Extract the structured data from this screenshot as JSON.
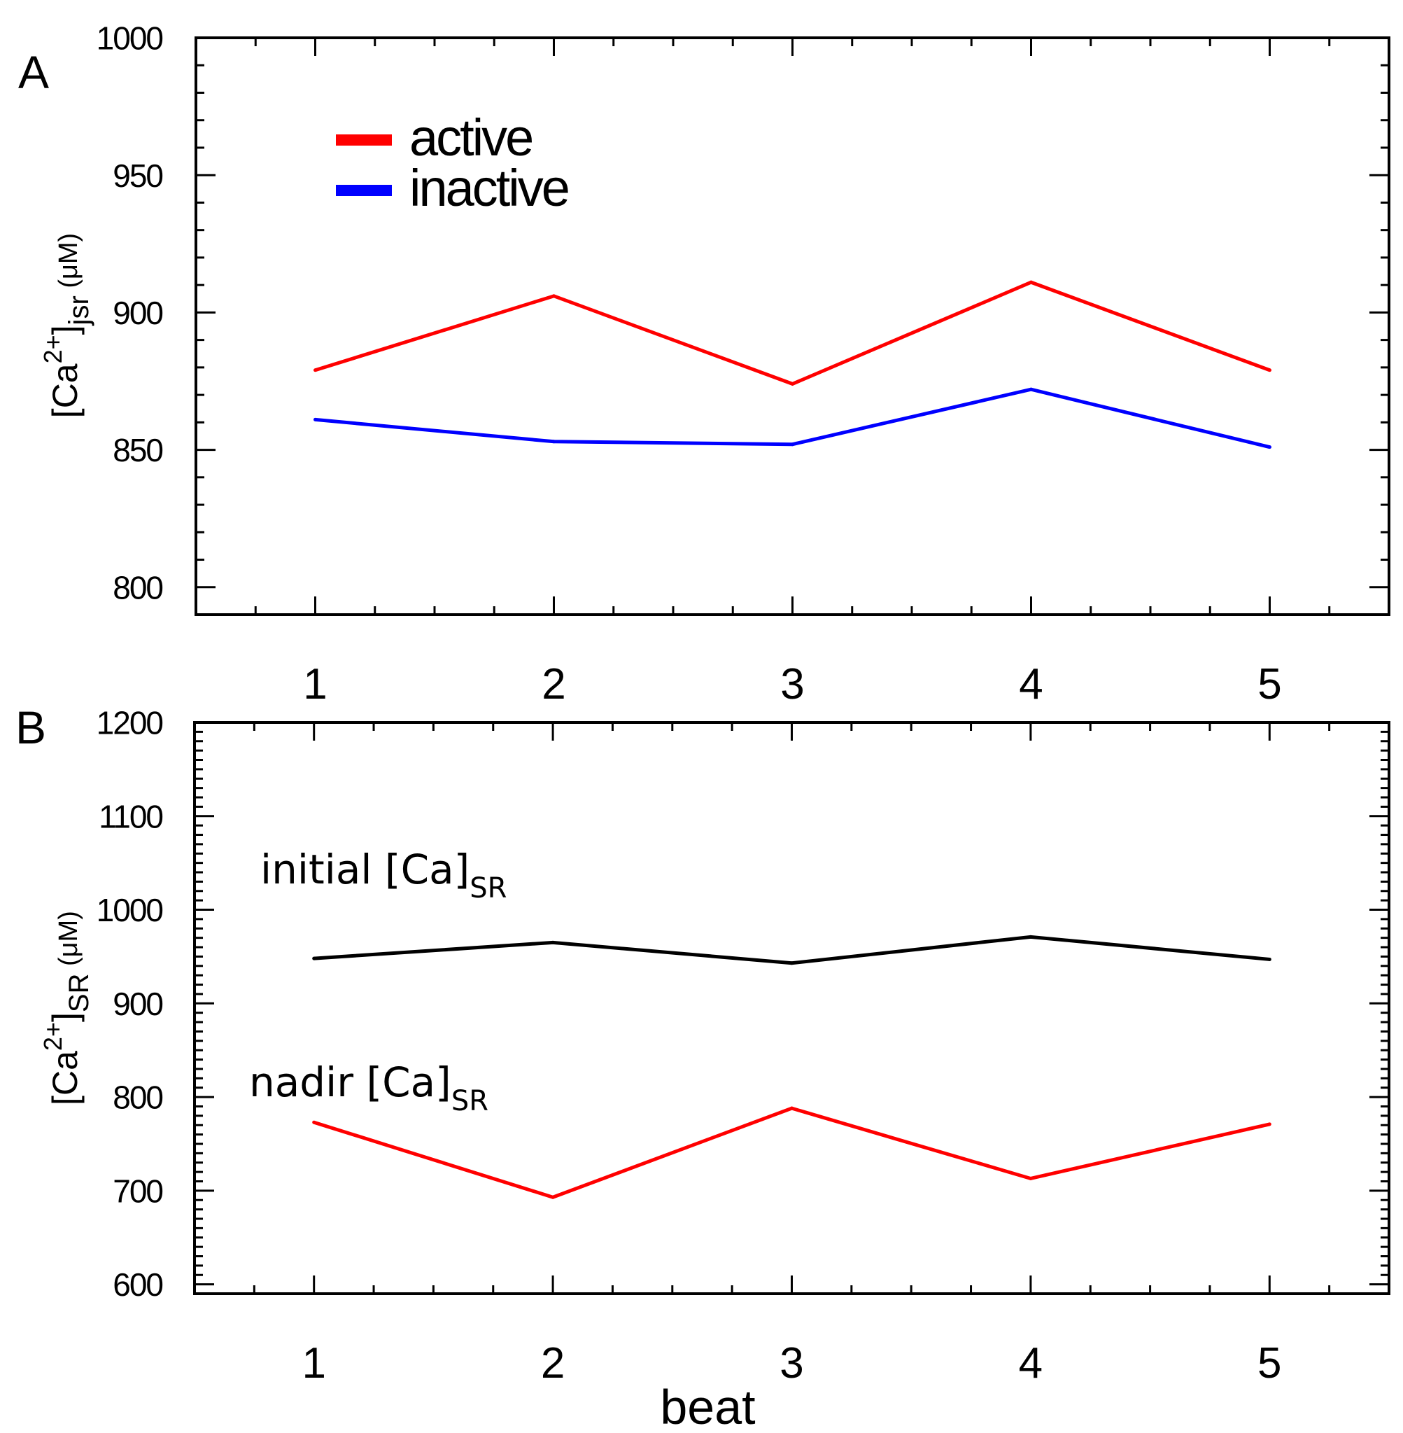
{
  "chart_data": [
    {
      "panel": "A",
      "type": "line",
      "x": [
        1,
        2,
        3,
        4,
        5
      ],
      "xticks": [
        "1",
        "2",
        "3",
        "4",
        "5"
      ],
      "xlim": [
        0.5,
        5.5
      ],
      "ylim": [
        790,
        1000
      ],
      "yticks": [
        800,
        850,
        900,
        950,
        1000
      ],
      "ylabel": {
        "base": "[Ca",
        "sup": "2+",
        "close": "]",
        "sub": "jsr",
        "unit": " (μM)"
      },
      "xlabel": "",
      "series": [
        {
          "name": "active",
          "color": "#ff0000",
          "values": [
            879,
            906,
            874,
            911,
            879
          ]
        },
        {
          "name": "inactive",
          "color": "#0000ff",
          "values": [
            861,
            853,
            852,
            872,
            851
          ]
        }
      ],
      "legend": {
        "position": "top-left",
        "entries": [
          "active",
          "inactive"
        ]
      }
    },
    {
      "panel": "B",
      "type": "line",
      "x": [
        1,
        2,
        3,
        4,
        5
      ],
      "xticks": [
        "1",
        "2",
        "3",
        "4",
        "5"
      ],
      "xlim": [
        0.5,
        5.5
      ],
      "ylim": [
        590,
        1200
      ],
      "yticks": [
        600,
        700,
        800,
        900,
        1000,
        1100,
        1200
      ],
      "ylabel": {
        "base": "[Ca",
        "sup": "2+",
        "close": "]",
        "sub": "SR",
        "unit": " (μM)"
      },
      "xlabel": "beat",
      "series": [
        {
          "name": "initial",
          "color": "#000000",
          "values": [
            948,
            965,
            943,
            971,
            947
          ]
        },
        {
          "name": "nadir",
          "color": "#ff0000",
          "values": [
            773,
            693,
            788,
            713,
            771
          ]
        }
      ],
      "annotations": [
        {
          "main": "initial [Ca]",
          "sub": "SR"
        },
        {
          "main": "nadir [Ca]",
          "sub": "SR"
        }
      ]
    }
  ]
}
